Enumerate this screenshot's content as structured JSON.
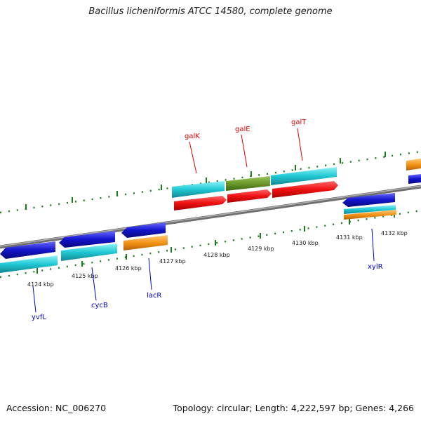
{
  "header": {
    "title": "Bacillus licheniformis ATCC 14580, complete genome"
  },
  "footer": {
    "accession": "Accession: NC_006270",
    "summary": "Topology: circular; Length: 4,222,597 bp; Genes: 4,266"
  },
  "scale": {
    "ticks": [
      "4124 kbp",
      "4125 kbp",
      "4126 kbp",
      "4127 kbp",
      "4128 kbp",
      "4129 kbp",
      "4130 kbp",
      "4131 kbp",
      "4132 kbp"
    ]
  },
  "genes": {
    "labels_above": [
      {
        "name": "galK",
        "color": "#dd0000"
      },
      {
        "name": "galE",
        "color": "#dd0000"
      },
      {
        "name": "galT",
        "color": "#dd0000"
      }
    ],
    "labels_below": [
      {
        "name": "yvfL",
        "color": "#0000cc"
      },
      {
        "name": "cycB",
        "color": "#0000cc"
      },
      {
        "name": "lacR",
        "color": "#0000cc"
      },
      {
        "name": "xylR",
        "color": "#0000cc"
      }
    ]
  },
  "colors": {
    "backbone": "#8a8a8a",
    "tick": "#1e7a1e",
    "red_feature": "#ee1111",
    "blue_feature": "#1414cc",
    "cyan_feature": "#20c8d4",
    "olive_feature": "#6a9a2a",
    "orange_feature": "#f59416"
  }
}
